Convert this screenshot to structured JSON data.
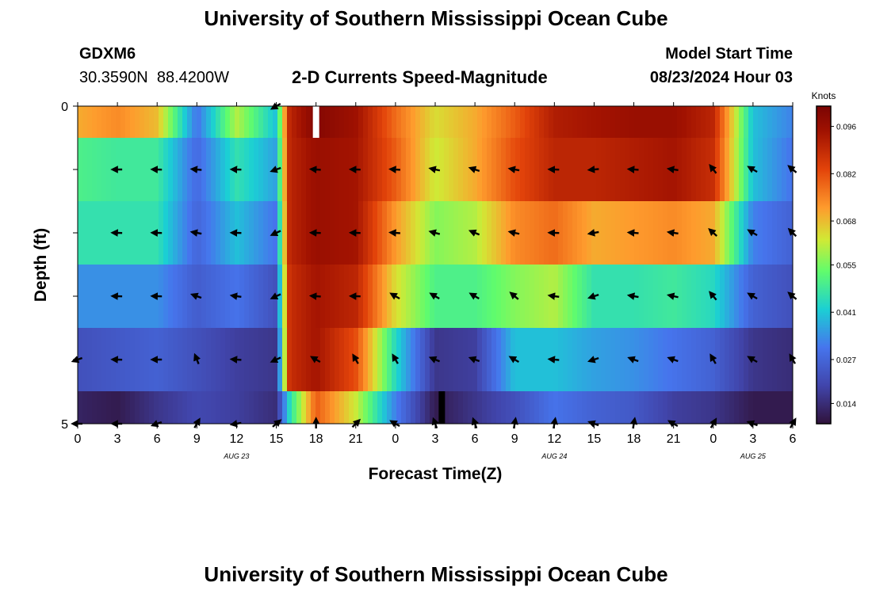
{
  "page": {
    "title_top": "University of Southern Mississippi Ocean Cube",
    "title_bottom": "University of Southern Mississippi Ocean Cube",
    "station": "GDXM6",
    "coords": "30.3590N  88.4200W",
    "chart_title": "2-D Currents Speed-Magnitude",
    "model_start_label": "Model Start Time",
    "model_start_value": "08/23/2024 Hour 03"
  },
  "chart_data": {
    "type": "heatmap",
    "title": "2-D Currents Speed-Magnitude",
    "xlabel": "Forecast Time(Z)",
    "ylabel": "Depth (ft)",
    "x_ticks": [
      "0",
      "3",
      "6",
      "9",
      "12",
      "15",
      "18",
      "21",
      "0",
      "3",
      "6",
      "9",
      "12",
      "15",
      "18",
      "21",
      "0",
      "3",
      "6"
    ],
    "date_labels": [
      {
        "label": "AUG 23",
        "hour": 12
      },
      {
        "label": "AUG 24",
        "hour": 36
      },
      {
        "label": "AUG 25",
        "hour": 51
      }
    ],
    "x_range_hours": [
      0,
      54
    ],
    "y_ticks": [
      "0",
      "",
      "",
      "",
      "",
      "5"
    ],
    "y_range_ft": [
      0,
      5
    ],
    "colorbar": {
      "unit": "Knots",
      "min": 0.008,
      "max": 0.102,
      "ticks": [
        "0.096",
        "0.082",
        "0.068",
        "0.055",
        "0.041",
        "0.027",
        "0.014"
      ],
      "tick_values": [
        0.096,
        0.082,
        0.068,
        0.055,
        0.041,
        0.027,
        0.014
      ]
    },
    "depth_bins": [
      0,
      1,
      2,
      3,
      4,
      5
    ],
    "time_keys": [
      0,
      3,
      6,
      9,
      12,
      15,
      16,
      18,
      21,
      24,
      27,
      30,
      33,
      36,
      39,
      42,
      45,
      48,
      51,
      54
    ],
    "speed_rows": [
      [
        0.07,
        0.074,
        0.068,
        0.03,
        0.06,
        0.04,
        0.09,
        0.1,
        0.095,
        0.078,
        0.064,
        0.07,
        0.08,
        0.092,
        0.094,
        0.096,
        0.096,
        0.09,
        0.04,
        0.032
      ],
      [
        0.05,
        0.048,
        0.048,
        0.028,
        0.046,
        0.036,
        0.09,
        0.096,
        0.094,
        0.08,
        0.062,
        0.07,
        0.082,
        0.09,
        0.09,
        0.092,
        0.094,
        0.088,
        0.04,
        0.03
      ],
      [
        0.046,
        0.046,
        0.046,
        0.027,
        0.04,
        0.03,
        0.09,
        0.096,
        0.094,
        0.072,
        0.056,
        0.06,
        0.074,
        0.078,
        0.07,
        0.072,
        0.074,
        0.07,
        0.032,
        0.026
      ],
      [
        0.034,
        0.034,
        0.034,
        0.025,
        0.03,
        0.022,
        0.088,
        0.094,
        0.09,
        0.064,
        0.05,
        0.05,
        0.056,
        0.06,
        0.046,
        0.046,
        0.048,
        0.044,
        0.026,
        0.022
      ],
      [
        0.022,
        0.024,
        0.026,
        0.022,
        0.018,
        0.016,
        0.088,
        0.094,
        0.082,
        0.044,
        0.016,
        0.018,
        0.04,
        0.04,
        0.036,
        0.034,
        0.03,
        0.026,
        0.016,
        0.014
      ],
      [
        0.012,
        0.01,
        0.016,
        0.02,
        0.018,
        0.014,
        0.044,
        0.08,
        0.062,
        0.032,
        0.01,
        0.016,
        0.022,
        0.03,
        0.026,
        0.024,
        0.018,
        0.016,
        0.01,
        0.01
      ]
    ],
    "spikes": [
      {
        "hour": 18,
        "depth_row": 0,
        "color": "#ffffff"
      },
      {
        "hour": 3.5,
        "depth_row": 5,
        "actual_hour": 27.5,
        "color": "#000000"
      }
    ],
    "vector_hours": [
      0,
      3,
      6,
      9,
      12,
      15,
      18,
      21,
      24,
      27,
      30,
      33,
      36,
      39,
      42,
      45,
      48,
      51,
      54
    ],
    "vector_angles_deg": [
      [
        null,
        null,
        null,
        null,
        null,
        210,
        null,
        null,
        null,
        null,
        null,
        null,
        null,
        null,
        null,
        null,
        null,
        null,
        null
      ],
      [
        null,
        180,
        178,
        175,
        178,
        200,
        176,
        178,
        176,
        168,
        162,
        170,
        178,
        185,
        176,
        172,
        128,
        150,
        140
      ],
      [
        null,
        178,
        178,
        170,
        178,
        205,
        178,
        178,
        176,
        165,
        158,
        168,
        178,
        190,
        176,
        172,
        138,
        150,
        135
      ],
      [
        null,
        178,
        178,
        160,
        172,
        205,
        176,
        178,
        150,
        150,
        150,
        140,
        172,
        198,
        170,
        168,
        130,
        150,
        140
      ],
      [
        200,
        178,
        180,
        112,
        176,
        205,
        150,
        120,
        120,
        158,
        160,
        150,
        175,
        198,
        160,
        160,
        120,
        150,
        120
      ],
      [
        180,
        180,
        200,
        60,
        190,
        40,
        90,
        45,
        150,
        110,
        110,
        80,
        80,
        160,
        80,
        150,
        60,
        160,
        60
      ]
    ]
  }
}
